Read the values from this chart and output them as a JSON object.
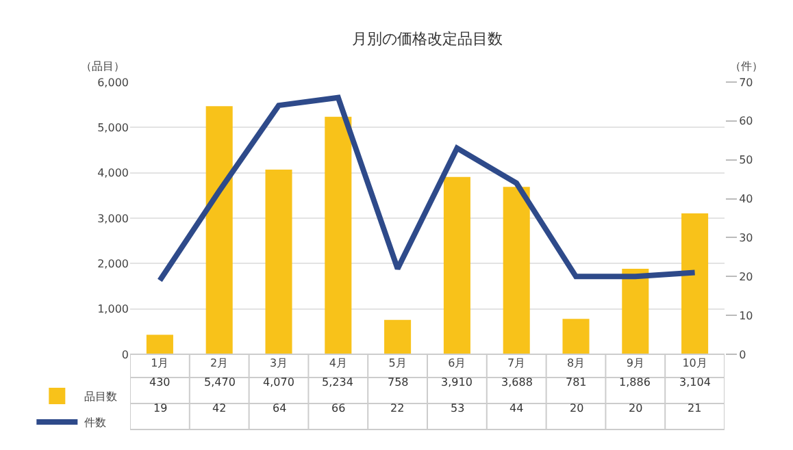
{
  "chart_data": {
    "type": "bar",
    "title": "月別の価格改定品目数",
    "ylabel": "（品目）",
    "y2label": "（件）",
    "categories": [
      "1月",
      "2月",
      "3月",
      "4月",
      "5月",
      "6月",
      "7月",
      "8月",
      "9月",
      "10月"
    ],
    "series": [
      {
        "name": "品目数",
        "color": "#f8c21a",
        "values": [
          430,
          5470,
          4070,
          5234,
          758,
          3910,
          3688,
          781,
          1886,
          3104
        ],
        "value_labels": [
          "430",
          "5,470",
          "4,070",
          "5,234",
          "758",
          "3,910",
          "3,688",
          "781",
          "1,886",
          "3,104"
        ]
      },
      {
        "name": "件数",
        "type": "line",
        "axis": "y2",
        "color": "#2e4a8a",
        "values": [
          19,
          42,
          64,
          66,
          22,
          53,
          44,
          20,
          20,
          21
        ],
        "value_labels": [
          "19",
          "42",
          "64",
          "66",
          "22",
          "53",
          "44",
          "20",
          "20",
          "21"
        ],
        "marker": "none",
        "line_style": "solid"
      }
    ],
    "ylim": [
      0,
      6000
    ],
    "yticks": [
      {
        "value": 0,
        "label": "0"
      },
      {
        "value": 1000,
        "label": "1,000"
      },
      {
        "value": 2000,
        "label": "2,000"
      },
      {
        "value": 3000,
        "label": "3,000"
      },
      {
        "value": 4000,
        "label": "4,000"
      },
      {
        "value": 5000,
        "label": "5,000"
      },
      {
        "value": 6000,
        "label": "6,000"
      }
    ],
    "y2lim": [
      0,
      70
    ],
    "y2ticks": [
      0,
      10,
      20,
      30,
      40,
      50,
      60,
      70
    ],
    "grid": "y",
    "legend": "bottom left"
  }
}
